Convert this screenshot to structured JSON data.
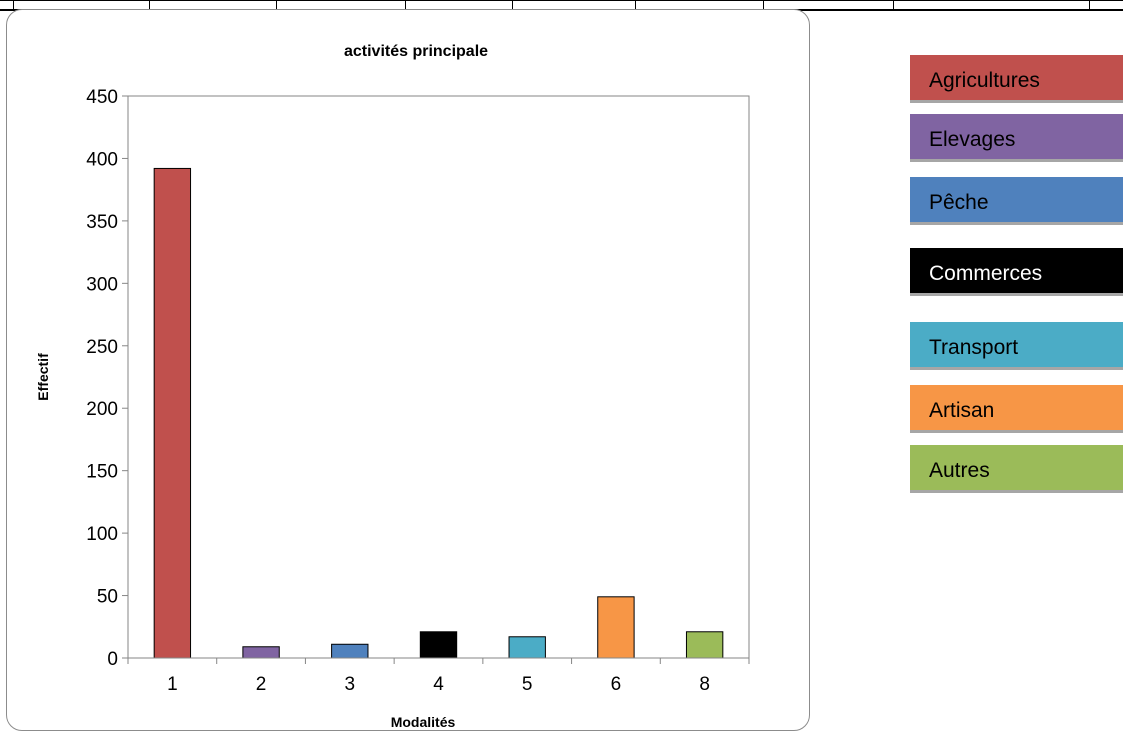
{
  "chart_data": {
    "type": "bar",
    "title": "activités principale",
    "xlabel": "Modalités",
    "ylabel": "Effectif",
    "categories": [
      "1",
      "2",
      "3",
      "4",
      "5",
      "6",
      "8"
    ],
    "values": [
      392,
      9,
      11,
      21,
      17,
      49,
      21
    ],
    "colors": [
      "#c0504d",
      "#8064a2",
      "#4f81bd",
      "#000000",
      "#4bacc6",
      "#f79646",
      "#9bbb59"
    ],
    "ylim": [
      0,
      450
    ],
    "yticks": [
      0,
      50,
      100,
      150,
      200,
      250,
      300,
      350,
      400,
      450
    ],
    "grid": false,
    "legend": "none"
  },
  "legend_boxes": [
    {
      "label": "Agricultures",
      "color": "#c0504d"
    },
    {
      "label": "Elevages",
      "color": "#8064a2"
    },
    {
      "label": "Pêche",
      "color": "#4f81bd"
    },
    {
      "label": "Commerces",
      "color": "#000000"
    },
    {
      "label": "Transport",
      "color": "#4bacc6"
    },
    {
      "label": "Artisan",
      "color": "#f79646"
    },
    {
      "label": "Autres",
      "color": "#9bbb59"
    }
  ]
}
